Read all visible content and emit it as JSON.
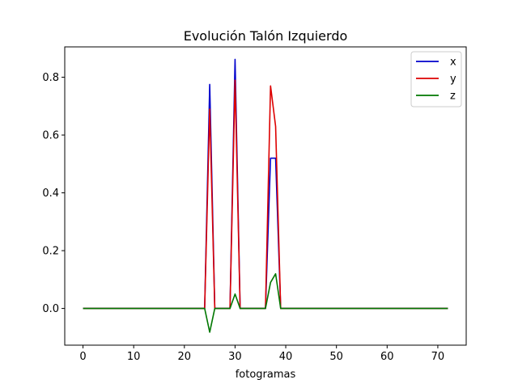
{
  "chart_data": {
    "type": "line",
    "title": "Evolución Talón Izquierdo",
    "xlabel": "fotogramas",
    "ylabel": "",
    "xlim": [
      -3.6,
      75.6
    ],
    "ylim": [
      -0.127,
      0.905
    ],
    "xticks": [
      0,
      10,
      20,
      30,
      40,
      50,
      60,
      70
    ],
    "yticks": [
      0.0,
      0.2,
      0.4,
      0.6,
      0.8
    ],
    "ytick_labels": [
      "0.0",
      "0.2",
      "0.4",
      "0.6",
      "0.8"
    ],
    "grid": false,
    "legend_position": "top-right",
    "x": [
      0,
      1,
      2,
      3,
      4,
      5,
      6,
      7,
      8,
      9,
      10,
      11,
      12,
      13,
      14,
      15,
      16,
      17,
      18,
      19,
      20,
      21,
      22,
      23,
      24,
      25,
      26,
      27,
      28,
      29,
      30,
      31,
      32,
      33,
      34,
      35,
      36,
      37,
      38,
      39,
      40,
      41,
      42,
      43,
      44,
      45,
      46,
      47,
      48,
      49,
      50,
      51,
      52,
      53,
      54,
      55,
      56,
      57,
      58,
      59,
      60,
      61,
      62,
      63,
      64,
      65,
      66,
      67,
      68,
      69,
      70,
      71,
      72
    ],
    "series": [
      {
        "name": "x",
        "color": "#0000cc",
        "values": [
          0,
          0,
          0,
          0,
          0,
          0,
          0,
          0,
          0,
          0,
          0,
          0,
          0,
          0,
          0,
          0,
          0,
          0,
          0,
          0,
          0,
          0,
          0,
          0,
          0,
          0.775,
          0,
          0,
          0,
          0,
          0.862,
          0,
          0,
          0,
          0,
          0,
          0,
          0.52,
          0.52,
          0,
          0,
          0,
          0,
          0,
          0,
          0,
          0,
          0,
          0,
          0,
          0,
          0,
          0,
          0,
          0,
          0,
          0,
          0,
          0,
          0,
          0,
          0,
          0,
          0,
          0,
          0,
          0,
          0,
          0,
          0,
          0,
          0,
          0
        ]
      },
      {
        "name": "y",
        "color": "#dd0000",
        "values": [
          0,
          0,
          0,
          0,
          0,
          0,
          0,
          0,
          0,
          0,
          0,
          0,
          0,
          0,
          0,
          0,
          0,
          0,
          0,
          0,
          0,
          0,
          0,
          0,
          0,
          0.69,
          0,
          0,
          0,
          0,
          0.79,
          0,
          0,
          0,
          0,
          0,
          0,
          0.77,
          0.63,
          0,
          0,
          0,
          0,
          0,
          0,
          0,
          0,
          0,
          0,
          0,
          0,
          0,
          0,
          0,
          0,
          0,
          0,
          0,
          0,
          0,
          0,
          0,
          0,
          0,
          0,
          0,
          0,
          0,
          0,
          0,
          0,
          0,
          0
        ]
      },
      {
        "name": "z",
        "color": "#007700",
        "values": [
          0,
          0,
          0,
          0,
          0,
          0,
          0,
          0,
          0,
          0,
          0,
          0,
          0,
          0,
          0,
          0,
          0,
          0,
          0,
          0,
          0,
          0,
          0,
          0,
          0,
          -0.082,
          0,
          0,
          0,
          0,
          0.05,
          0,
          0,
          0,
          0,
          0,
          0,
          0.09,
          0.12,
          0,
          0,
          0,
          0,
          0,
          0,
          0,
          0,
          0,
          0,
          0,
          0,
          0,
          0,
          0,
          0,
          0,
          0,
          0,
          0,
          0,
          0,
          0,
          0,
          0,
          0,
          0,
          0,
          0,
          0,
          0,
          0,
          0,
          0
        ]
      }
    ]
  }
}
